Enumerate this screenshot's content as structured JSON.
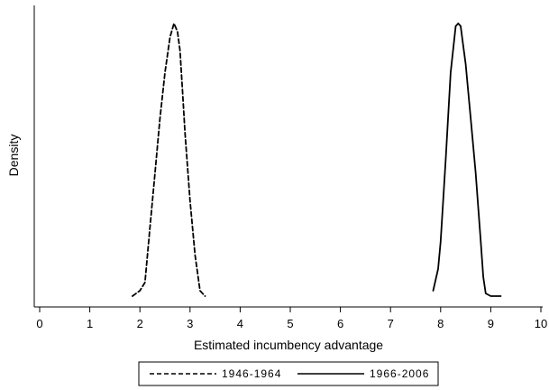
{
  "chart_data": {
    "type": "line",
    "title": "",
    "xlabel": "Estimated incumbency advantage",
    "ylabel": "Density",
    "xlim": [
      0,
      10
    ],
    "x_ticks": [
      "0",
      "1",
      "2",
      "3",
      "4",
      "5",
      "6",
      "7",
      "8",
      "9",
      "10"
    ],
    "y_ticks": [],
    "grid": false,
    "legend_position": "bottom",
    "series": [
      {
        "name": "1946-1964",
        "style": "dashed",
        "color": "#000000",
        "x": [
          1.85,
          2.0,
          2.1,
          2.2,
          2.3,
          2.4,
          2.5,
          2.6,
          2.68,
          2.75,
          2.8,
          2.85,
          2.9,
          3.0,
          3.1,
          3.2,
          3.3
        ],
        "y": [
          0.0,
          0.02,
          0.05,
          0.25,
          0.45,
          0.65,
          0.82,
          0.95,
          1.0,
          0.97,
          0.9,
          0.75,
          0.6,
          0.35,
          0.15,
          0.02,
          0.0
        ]
      },
      {
        "name": "1966-2006",
        "style": "solid",
        "color": "#000000",
        "x": [
          7.85,
          7.95,
          8.0,
          8.1,
          8.2,
          8.3,
          8.35,
          8.4,
          8.45,
          8.5,
          8.6,
          8.7,
          8.8,
          8.85,
          8.9,
          9.0,
          9.2
        ],
        "y": [
          0.02,
          0.1,
          0.2,
          0.5,
          0.82,
          0.99,
          1.0,
          0.99,
          0.92,
          0.85,
          0.65,
          0.45,
          0.2,
          0.07,
          0.01,
          0.0,
          0.0
        ]
      }
    ]
  }
}
